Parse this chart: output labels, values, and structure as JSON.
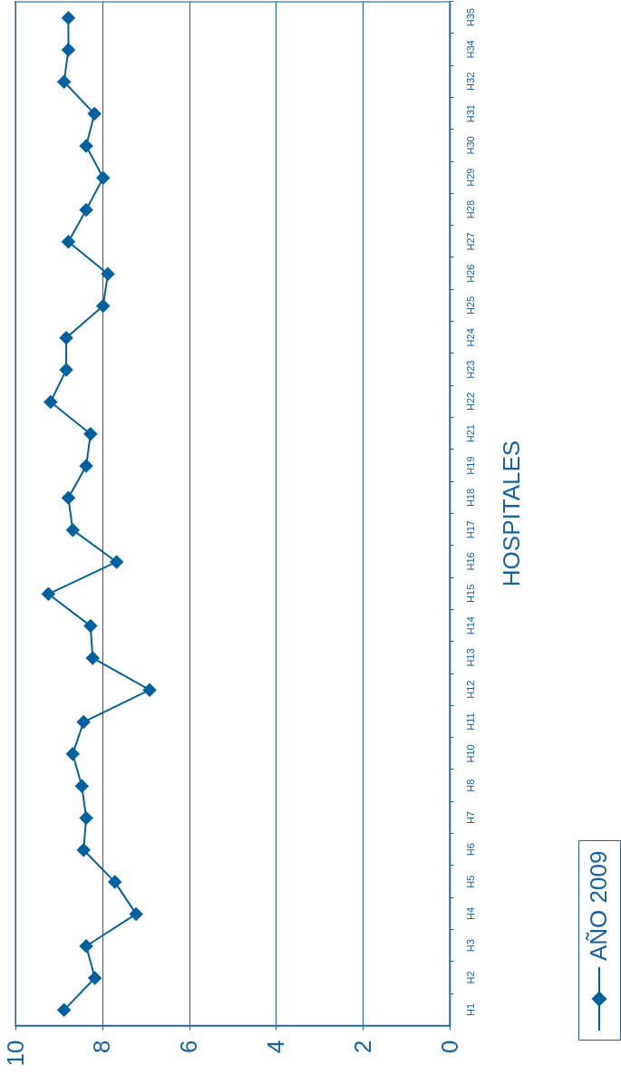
{
  "chart_data": {
    "type": "line",
    "orientation": "horizontal",
    "ylabel": "HOSPITALES",
    "categories": [
      "H35",
      "H34",
      "H32",
      "H31",
      "H30",
      "H29",
      "H28",
      "H27",
      "H26",
      "H25",
      "H24",
      "H23",
      "H22",
      "H21",
      "H19",
      "H18",
      "H17",
      "H16",
      "H15",
      "H14",
      "H13",
      "H12",
      "H11",
      "H10",
      "H8",
      "H7",
      "H6",
      "H5",
      "H4",
      "H3",
      "H2",
      "H1"
    ],
    "series": [
      {
        "name": "AÑO 2009",
        "color": "#0060a0",
        "values": [
          8.78,
          8.78,
          8.88,
          8.18,
          8.37,
          7.98,
          8.37,
          8.78,
          7.87,
          7.98,
          8.83,
          8.83,
          9.19,
          8.27,
          8.37,
          8.78,
          8.68,
          7.67,
          9.24,
          8.27,
          8.22,
          6.91,
          8.43,
          8.68,
          8.47,
          8.37,
          8.43,
          7.71,
          7.22,
          8.37,
          8.17,
          8.88
        ]
      }
    ],
    "xlim": [
      10,
      0
    ],
    "xticks": [
      10,
      8,
      6,
      4,
      2,
      0
    ],
    "grid": "x",
    "legend": "bottom right",
    "marker": "diamond",
    "line_style": "solid"
  }
}
